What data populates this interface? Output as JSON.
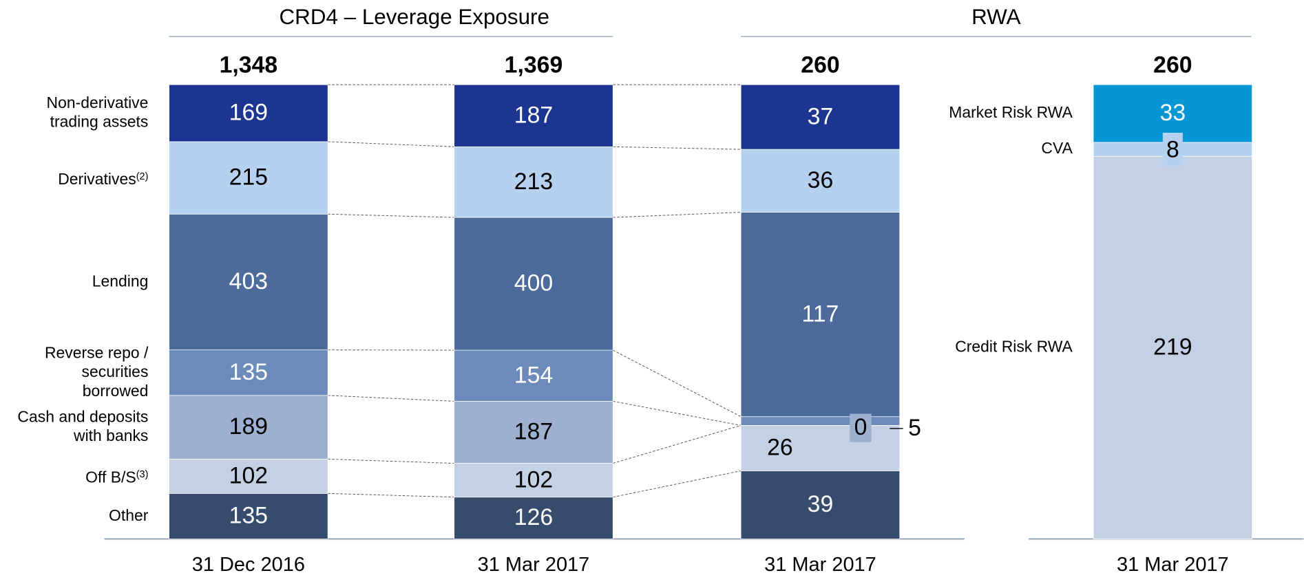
{
  "chart_data": [
    {
      "type": "bar",
      "stacked": true,
      "title": "CRD4 – Leverage Exposure",
      "categories": [
        "31 Dec 2016",
        "31 Mar 2017"
      ],
      "totals": [
        1348,
        1369
      ],
      "total_labels": [
        "1,348",
        "1,369"
      ],
      "series": [
        {
          "name": "Non-derivative trading assets",
          "color": "#1c3591",
          "values": [
            169,
            187
          ]
        },
        {
          "name": "Derivatives",
          "note": "(2)",
          "color": "#b5d1ef",
          "values": [
            215,
            213
          ]
        },
        {
          "name": "Lending",
          "color": "#4c6b9b",
          "values": [
            403,
            400
          ]
        },
        {
          "name": "Reverse repo / securities borrowed",
          "color": "#6c8bba",
          "values": [
            135,
            154
          ]
        },
        {
          "name": "Cash and deposits with banks",
          "color": "#9eb0cf",
          "values": [
            189,
            187
          ]
        },
        {
          "name": "Off B/S",
          "note": "(3)",
          "color": "#c4d0e4",
          "values": [
            102,
            102
          ]
        },
        {
          "name": "Other",
          "color": "#364c6d",
          "values": [
            135,
            126
          ]
        }
      ]
    },
    {
      "type": "bar",
      "stacked": true,
      "title": "RWA",
      "categories": [
        "31 Mar 2017"
      ],
      "totals": [
        260
      ],
      "series": [
        {
          "color": "#1c3591",
          "values": [
            37
          ]
        },
        {
          "color": "#b5d1ef",
          "values": [
            36
          ]
        },
        {
          "color": "#4c6b9b",
          "values": [
            117
          ]
        },
        {
          "color": "#6c8bba",
          "values": [
            5
          ]
        },
        {
          "color": "#9eb0cf",
          "values": [
            0
          ]
        },
        {
          "color": "#c4d0e4",
          "values": [
            26
          ]
        },
        {
          "color": "#364c6d",
          "values": [
            39
          ]
        }
      ]
    },
    {
      "type": "bar",
      "stacked": true,
      "categories": [
        "31 Mar 2017"
      ],
      "totals": [
        260
      ],
      "series": [
        {
          "name": "Market Risk RWA",
          "color": "#0696d4",
          "values": [
            33
          ]
        },
        {
          "name": "CVA",
          "color": "#b5d1ef",
          "values": [
            8
          ]
        },
        {
          "name": "Credit Risk RWA",
          "color": "#c4d0e4",
          "values": [
            219
          ]
        }
      ]
    }
  ]
}
